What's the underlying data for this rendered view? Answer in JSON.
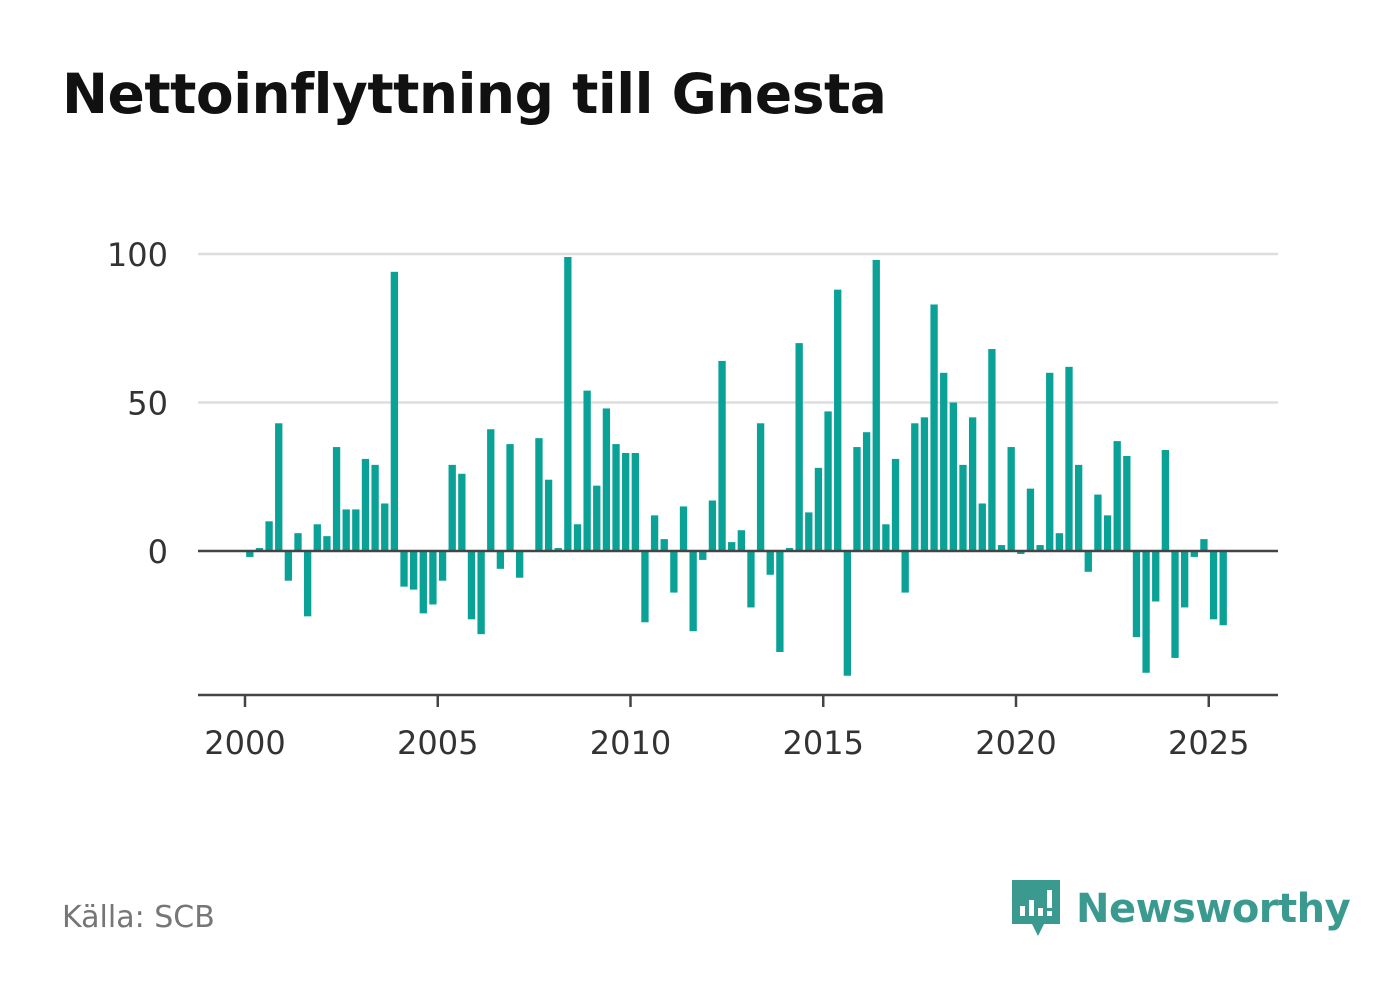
{
  "header": {
    "title": "Nettoinflyttning till Gnesta"
  },
  "footer": {
    "source": "Källa: SCB",
    "brand": "Newsworthy"
  },
  "colors": {
    "bar": "#0aa297",
    "grid": "#dddddd",
    "axis": "#444444",
    "brand": "#3b9a8f"
  },
  "chart_data": {
    "type": "bar",
    "title": "Nettoinflyttning till Gnesta",
    "xlabel": "",
    "ylabel": "",
    "x_ticks": [
      2000,
      2005,
      2010,
      2015,
      2020,
      2025
    ],
    "y_ticks": [
      0,
      50,
      100
    ],
    "ylim": [
      -48,
      100
    ],
    "xlim": [
      1998.75,
      2026.75
    ],
    "grid": true,
    "bar_width_years": 0.19,
    "x": [
      2000.125,
      2000.375,
      2000.625,
      2000.875,
      2001.125,
      2001.375,
      2001.625,
      2001.875,
      2002.125,
      2002.375,
      2002.625,
      2002.875,
      2003.125,
      2003.375,
      2003.625,
      2003.875,
      2004.125,
      2004.375,
      2004.625,
      2004.875,
      2005.125,
      2005.375,
      2005.625,
      2005.875,
      2006.125,
      2006.375,
      2006.625,
      2006.875,
      2007.125,
      2007.375,
      2007.625,
      2007.875,
      2008.125,
      2008.375,
      2008.625,
      2008.875,
      2009.125,
      2009.375,
      2009.625,
      2009.875,
      2010.125,
      2010.375,
      2010.625,
      2010.875,
      2011.125,
      2011.375,
      2011.625,
      2011.875,
      2012.125,
      2012.375,
      2012.625,
      2012.875,
      2013.125,
      2013.375,
      2013.625,
      2013.875,
      2014.125,
      2014.375,
      2014.625,
      2014.875,
      2015.125,
      2015.375,
      2015.625,
      2015.875,
      2016.125,
      2016.375,
      2016.625,
      2016.875,
      2017.125,
      2017.375,
      2017.625,
      2017.875,
      2018.125,
      2018.375,
      2018.625,
      2018.875,
      2019.125,
      2019.375,
      2019.625,
      2019.875,
      2020.125,
      2020.375,
      2020.625,
      2020.875,
      2021.125,
      2021.375,
      2021.625,
      2021.875,
      2022.125,
      2022.375,
      2022.625,
      2022.875,
      2023.125,
      2023.375,
      2023.625,
      2023.875,
      2024.125,
      2024.375,
      2024.625,
      2024.875,
      2025.125,
      2025.375
    ],
    "values": [
      -2,
      1,
      10,
      43,
      -10,
      6,
      -22,
      9,
      5,
      35,
      14,
      14,
      31,
      29,
      16,
      94,
      -12,
      -13,
      -21,
      -18,
      -10,
      29,
      26,
      -23,
      -28,
      41,
      -6,
      36,
      -9,
      0,
      38,
      24,
      1,
      99,
      9,
      54,
      22,
      48,
      36,
      33,
      33,
      -24,
      12,
      4,
      -14,
      15,
      -27,
      -3,
      17,
      64,
      3,
      7,
      -19,
      43,
      -8,
      -34,
      1,
      70,
      13,
      28,
      47,
      88,
      -42,
      35,
      40,
      98,
      9,
      31,
      -14,
      43,
      45,
      83,
      60,
      50,
      29,
      45,
      16,
      68,
      2,
      35,
      -1,
      21,
      2,
      60,
      6,
      62,
      29,
      -7,
      19,
      12,
      37,
      32,
      -29,
      -41,
      -17,
      34,
      -36,
      -19,
      -2,
      4,
      -23,
      -25
    ]
  }
}
